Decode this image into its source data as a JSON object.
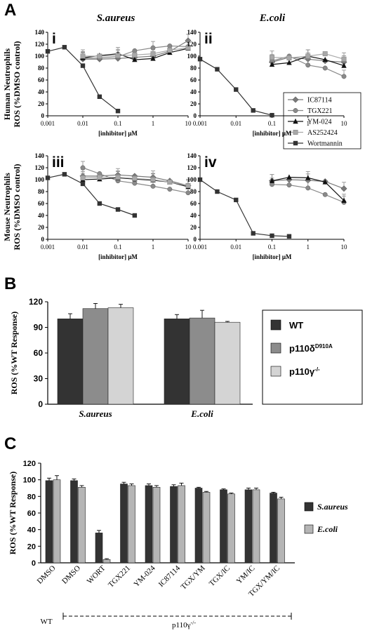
{
  "panel_letters": [
    "A",
    "B",
    "C"
  ],
  "panel_A": {
    "column_titles": [
      "S.aureus",
      "E.coli"
    ],
    "row_labels": [
      [
        "Human Neutrophils",
        "ROS (%DMSO control)"
      ],
      [
        "Mouse Neutrophils",
        "ROS (%DMSO control)"
      ]
    ],
    "xlabel": "[inhibitor] μM",
    "xticks": [
      "0.001",
      "0.01",
      "0.1",
      "1",
      "10"
    ],
    "legend": [
      "IC87114",
      "TGX221",
      "YM-024",
      "AS252424",
      "Wortmannin"
    ],
    "colors": {
      "IC87114": "#7a7a7a",
      "TGX221": "#8a8a8a",
      "YM-024": "#111111",
      "AS252424": "#a8a8a8",
      "Wortmannin": "#333333"
    }
  },
  "panel_B": {
    "ylabel": "ROS (%WT Response)",
    "legend": [
      {
        "label": "WT",
        "sup": "",
        "color": "#333333"
      },
      {
        "label": "p110δ",
        "sup": "D910A",
        "color": "#8c8c8c"
      },
      {
        "label": "p110γ",
        "sup": "-/-",
        "color": "#d4d4d4"
      }
    ]
  },
  "panel_C": {
    "ylabel": "ROS (%WT Response)",
    "legend": [
      {
        "label": "S.aureus",
        "color": "#333333"
      },
      {
        "label": "E.coli",
        "color": "#b5b5b5"
      }
    ],
    "group_wt": "WT",
    "group_ko": "p110γ",
    "group_ko_sup": "-/-"
  },
  "chart_data": [
    {
      "type": "line",
      "panel": "i",
      "title": "S.aureus",
      "ylabel": "ROS (%DMSO control)",
      "xlabel": "[inhibitor] μM",
      "xscale": "log",
      "xlim": [
        0.001,
        10
      ],
      "ylim": [
        0,
        140
      ],
      "yticks": [
        0,
        20,
        40,
        60,
        80,
        100,
        120,
        140
      ],
      "series": [
        {
          "name": "IC87114",
          "x": [
            0.01,
            0.03,
            0.1,
            0.3,
            1,
            3,
            10
          ],
          "y": [
            95,
            95,
            96,
            98,
            100,
            108,
            126
          ]
        },
        {
          "name": "TGX221",
          "x": [
            0.01,
            0.03,
            0.1,
            0.3,
            1,
            3,
            10
          ],
          "y": [
            96,
            97,
            99,
            109,
            114,
            117,
            116
          ]
        },
        {
          "name": "YM-024",
          "x": [
            0.01,
            0.03,
            0.1,
            0.3,
            1,
            3,
            10
          ],
          "y": [
            97,
            101,
            104,
            94,
            96,
            106,
            113
          ]
        },
        {
          "name": "AS252424",
          "x": [
            0.01,
            0.03,
            0.1,
            0.3,
            1,
            3,
            10
          ],
          "y": [
            100,
            100,
            101,
            102,
            104,
            110,
            114
          ]
        },
        {
          "name": "Wortmannin",
          "x": [
            0.001,
            0.003,
            0.01,
            0.03,
            0.1
          ],
          "y": [
            108,
            115,
            84,
            32,
            8
          ]
        }
      ]
    },
    {
      "type": "line",
      "panel": "ii",
      "title": "E.coli",
      "xlabel": "[inhibitor] μM",
      "xscale": "log",
      "xlim": [
        0.001,
        10
      ],
      "ylim": [
        0,
        140
      ],
      "yticks": [
        0,
        20,
        40,
        60,
        80,
        100,
        120,
        140
      ],
      "series": [
        {
          "name": "IC87114",
          "x": [
            0.1,
            0.3,
            1,
            3,
            10
          ],
          "y": [
            90,
            98,
            95,
            92,
            90
          ]
        },
        {
          "name": "TGX221",
          "x": [
            0.1,
            0.3,
            1,
            3,
            10
          ],
          "y": [
            92,
            100,
            85,
            80,
            66
          ]
        },
        {
          "name": "YM-024",
          "x": [
            0.1,
            0.3,
            1,
            3,
            10
          ],
          "y": [
            86,
            89,
            100,
            94,
            84
          ]
        },
        {
          "name": "AS252424",
          "x": [
            0.1,
            0.3,
            1,
            3,
            10
          ],
          "y": [
            98,
            97,
            100,
            104,
            95
          ]
        },
        {
          "name": "Wortmannin",
          "x": [
            0.001,
            0.003,
            0.01,
            0.03,
            0.1
          ],
          "y": [
            95,
            78,
            44,
            9,
            1
          ]
        }
      ]
    },
    {
      "type": "line",
      "panel": "iii",
      "ylabel": "ROS (%DMSO control)",
      "xlabel": "[inhibitor] μM",
      "xscale": "log",
      "xlim": [
        0.001,
        10
      ],
      "ylim": [
        0,
        140
      ],
      "yticks": [
        0,
        20,
        40,
        60,
        80,
        100,
        120,
        140
      ],
      "series": [
        {
          "name": "IC87114",
          "x": [
            0.01,
            0.03,
            0.1,
            0.3,
            1,
            3,
            10
          ],
          "y": [
            106,
            106,
            108,
            106,
            104,
            98,
            90
          ]
        },
        {
          "name": "TGX221",
          "x": [
            0.01,
            0.03,
            0.1,
            0.3,
            1,
            3,
            10
          ],
          "y": [
            120,
            110,
            98,
            94,
            89,
            84,
            78
          ]
        },
        {
          "name": "YM-024",
          "x": [
            0.01,
            0.03,
            0.1,
            0.3,
            1,
            3,
            10
          ],
          "y": [
            100,
            101,
            103,
            101,
            99,
            96,
            88
          ]
        },
        {
          "name": "AS252424",
          "x": [
            0.01,
            0.03,
            0.1,
            0.3,
            1,
            3,
            10
          ],
          "y": [
            103,
            104,
            104,
            102,
            100,
            96,
            90
          ]
        },
        {
          "name": "Wortmannin",
          "x": [
            0.001,
            0.003,
            0.01,
            0.03,
            0.1,
            0.3
          ],
          "y": [
            103,
            109,
            93,
            60,
            50,
            40
          ]
        }
      ]
    },
    {
      "type": "line",
      "panel": "iv",
      "xlabel": "[inhibitor] μM",
      "xscale": "log",
      "xlim": [
        0.001,
        10
      ],
      "ylim": [
        0,
        140
      ],
      "yticks": [
        0,
        20,
        40,
        60,
        80,
        100,
        120,
        140
      ],
      "series": [
        {
          "name": "IC87114",
          "x": [
            0.1,
            0.3,
            1,
            3,
            10
          ],
          "y": [
            98,
            100,
            99,
            97,
            85
          ]
        },
        {
          "name": "TGX221",
          "x": [
            0.1,
            0.3,
            1,
            3,
            10
          ],
          "y": [
            92,
            91,
            86,
            75,
            62
          ]
        },
        {
          "name": "YM-024",
          "x": [
            0.1,
            0.3,
            1,
            3,
            10
          ],
          "y": [
            98,
            104,
            103,
            96,
            65
          ]
        },
        {
          "name": "Wortmannin",
          "x": [
            0.001,
            0.003,
            0.01,
            0.03,
            0.1,
            0.3
          ],
          "y": [
            100,
            80,
            66,
            10,
            6,
            5
          ]
        }
      ]
    },
    {
      "type": "bar",
      "panel": "B",
      "categories": [
        "S.aureus",
        "E.coli"
      ],
      "ylabel": "ROS (%WT Response)",
      "ylim": [
        0,
        120
      ],
      "yticks": [
        0,
        30,
        60,
        90,
        120
      ],
      "series": [
        {
          "name": "WT",
          "values": [
            100,
            100
          ],
          "errors": [
            6,
            5
          ]
        },
        {
          "name": "p110δD910A",
          "values": [
            112,
            101
          ],
          "errors": [
            6,
            9
          ]
        },
        {
          "name": "p110γ-/-",
          "values": [
            113,
            96
          ],
          "errors": [
            4,
            1
          ]
        }
      ]
    },
    {
      "type": "bar",
      "panel": "C",
      "categories": [
        "DMSO",
        "DMSO",
        "WORT",
        "TGX221",
        "YM-024",
        "IC87114",
        "TGX/YM",
        "TGX/IC",
        "YM/IC",
        "TGX/YM/IC"
      ],
      "ylabel": "ROS (%WT Response)",
      "ylim": [
        0,
        120
      ],
      "yticks": [
        0,
        20,
        40,
        60,
        80,
        100,
        120
      ],
      "series": [
        {
          "name": "S.aureus",
          "values": [
            99,
            99,
            36,
            95,
            93,
            92,
            90,
            88,
            88,
            84
          ],
          "errors": [
            3,
            2,
            3,
            2,
            2,
            2,
            1,
            1,
            2,
            1
          ]
        },
        {
          "name": "E.coli",
          "values": [
            100,
            91,
            4,
            93,
            91,
            93,
            85,
            83,
            88,
            77
          ],
          "errors": [
            5,
            2,
            1,
            2,
            2,
            3,
            1,
            1,
            2,
            2
          ]
        }
      ]
    }
  ]
}
